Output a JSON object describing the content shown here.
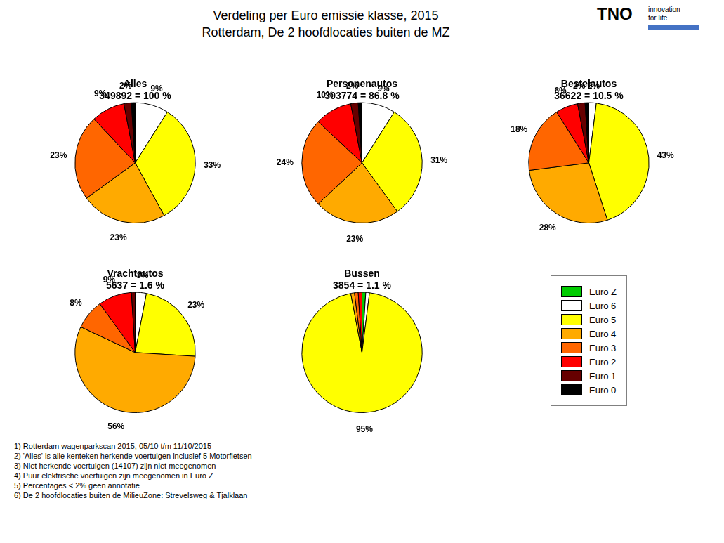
{
  "title": "Verdeling per Euro emissie klasse, 2015",
  "subtitle": "Rotterdam, De 2 hoofdlocaties buiten de MZ",
  "legend": "center",
  "annotations": {
    "notes": [
      "1) Rotterdam wagenparkscan 2015, 05/10 t/m 11/10/2015",
      "2) 'Alles' is alle kenteken herkende voertuigen inclusief 5 Motorfietsen",
      "3) Niet herkende voertuigen (14107) zijn niet meegenomen",
      "4) Puur elektrische voertuigen zijn meegenomen in Euro Z",
      "5) Percentages < 2% geen annotatie",
      "6) De 2 hoofdlocaties buiten de MilieuZone: Strevelsweg & Tjalklaan"
    ],
    "logo": [
      "TNO",
      "innovation",
      "for life"
    ]
  },
  "chart_data": [
    {
      "type": "pie",
      "title": "Alles",
      "subtitle": "349892 = 100 %",
      "categories": [
        "Euro Z",
        "Euro 6",
        "Euro 5",
        "Euro 4",
        "Euro 3",
        "Euro 2",
        "Euro 1",
        "Euro 0"
      ],
      "values": [
        0,
        9,
        33,
        23,
        23,
        9,
        2,
        1
      ],
      "value_labels": [
        null,
        "9%",
        "33%",
        "23%",
        "23%",
        "9%",
        "2%",
        null
      ],
      "colors": [
        "#00cc00",
        "#ffffff",
        "#ffff00",
        "#ffaa00",
        "#ff6600",
        "#ff0000",
        "#660000",
        "#000000"
      ],
      "data_labels": true
    },
    {
      "type": "pie",
      "title": "Personenautos",
      "subtitle": "303774 = 86.8 %",
      "categories": [
        "Euro Z",
        "Euro 6",
        "Euro 5",
        "Euro 4",
        "Euro 3",
        "Euro 2",
        "Euro 1",
        "Euro 0"
      ],
      "values": [
        0,
        9,
        31,
        23,
        24,
        10,
        2,
        1
      ],
      "value_labels": [
        null,
        "9%",
        "31%",
        "23%",
        "24%",
        "10%",
        "2%",
        null
      ],
      "colors": [
        "#00cc00",
        "#ffffff",
        "#ffff00",
        "#ffaa00",
        "#ff6600",
        "#ff0000",
        "#660000",
        "#000000"
      ],
      "data_labels": true
    },
    {
      "type": "pie",
      "title": "Bestelautos",
      "subtitle": "36622 = 10.5 %",
      "categories": [
        "Euro Z",
        "Euro 6",
        "Euro 5",
        "Euro 4",
        "Euro 3",
        "Euro 2",
        "Euro 1",
        "Euro 0"
      ],
      "values": [
        0,
        2,
        43,
        28,
        18,
        6,
        2,
        1
      ],
      "value_labels": [
        null,
        "2%",
        "43%",
        "28%",
        "18%",
        "6%",
        "2%",
        null
      ],
      "colors": [
        "#00cc00",
        "#ffffff",
        "#ffff00",
        "#ffaa00",
        "#ff6600",
        "#ff0000",
        "#660000",
        "#000000"
      ],
      "data_labels": true
    },
    {
      "type": "pie",
      "title": "Vrachtautos",
      "subtitle": "5637 = 1.6 %",
      "categories": [
        "Euro Z",
        "Euro 6",
        "Euro 5",
        "Euro 4",
        "Euro 3",
        "Euro 2",
        "Euro 1",
        "Euro 0"
      ],
      "values": [
        0,
        3,
        23,
        56,
        8,
        9,
        1,
        0
      ],
      "value_labels": [
        null,
        "3%",
        "23%",
        "56%",
        "8%",
        "9%",
        null,
        null
      ],
      "colors": [
        "#00cc00",
        "#ffffff",
        "#ffff00",
        "#ffaa00",
        "#ff6600",
        "#ff0000",
        "#660000",
        "#000000"
      ],
      "data_labels": true
    },
    {
      "type": "pie",
      "title": "Bussen",
      "subtitle": "3854 = 1.1 %",
      "categories": [
        "Euro Z",
        "Euro 6",
        "Euro 5",
        "Euro 4",
        "Euro 3",
        "Euro 2",
        "Euro 1",
        "Euro 0"
      ],
      "values": [
        1,
        1,
        95,
        1,
        1,
        1,
        0,
        0
      ],
      "value_labels": [
        null,
        null,
        "95%",
        null,
        null,
        null,
        null,
        null
      ],
      "colors": [
        "#00cc00",
        "#ffffff",
        "#ffff00",
        "#ffaa00",
        "#ff6600",
        "#ff0000",
        "#660000",
        "#000000"
      ],
      "data_labels": true
    }
  ]
}
